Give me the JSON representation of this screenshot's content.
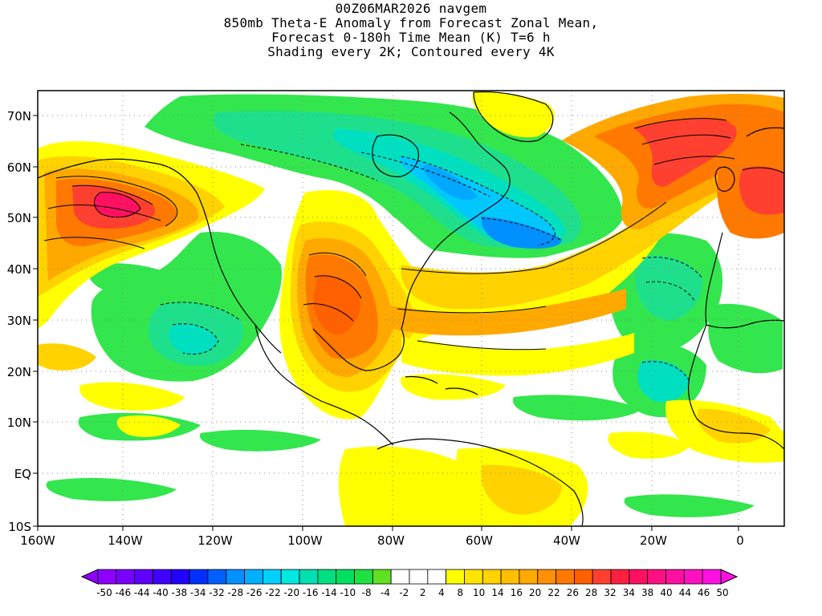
{
  "title": {
    "line1": "00Z06MAR2026 navgem",
    "line2": "850mb Theta-E Anomaly from Forecast Zonal Mean,",
    "line3": "Forecast 0-180h Time Mean (K) T=6 h",
    "line4": "Shading every 2K; Contoured every 4K"
  },
  "map": {
    "lon_labels": [
      "160W",
      "140W",
      "120W",
      "100W",
      "80W",
      "60W",
      "40W",
      "20W",
      "0"
    ],
    "lat_labels": [
      "70N",
      "60N",
      "50N",
      "40N",
      "30N",
      "20N",
      "10N",
      "EQ",
      "10S"
    ],
    "colors": {
      "land_outline": "#000000",
      "frame": "#000000"
    }
  },
  "colorbar": {
    "labels": [
      "-50",
      "-46",
      "-44",
      "-40",
      "-38",
      "-34",
      "-32",
      "-28",
      "-26",
      "-22",
      "-20",
      "-16",
      "-14",
      "-10",
      "-8",
      "-4",
      "-2",
      "2",
      "4",
      "8",
      "10",
      "14",
      "16",
      "20",
      "22",
      "26",
      "28",
      "32",
      "34",
      "38",
      "40",
      "44",
      "46",
      "50"
    ],
    "colors": [
      "#8d00ff",
      "#7800ff",
      "#5f00ff",
      "#4000ff",
      "#2000ff",
      "#0030ff",
      "#0060ff",
      "#0090ff",
      "#00b0ff",
      "#00d0ff",
      "#00e8e0",
      "#00e0b0",
      "#00e080",
      "#00e060",
      "#20e040",
      "#60e020",
      "#ffffff",
      "#ffffff",
      "#ffffff",
      "#ffff00",
      "#ffe400",
      "#ffd200",
      "#ffbe00",
      "#ffa800",
      "#ff9000",
      "#ff7800",
      "#ff6000",
      "#ff4030",
      "#ff2040",
      "#ff1060",
      "#ff1080",
      "#ff10a0",
      "#ff10c0",
      "#ff10e0"
    ]
  }
}
